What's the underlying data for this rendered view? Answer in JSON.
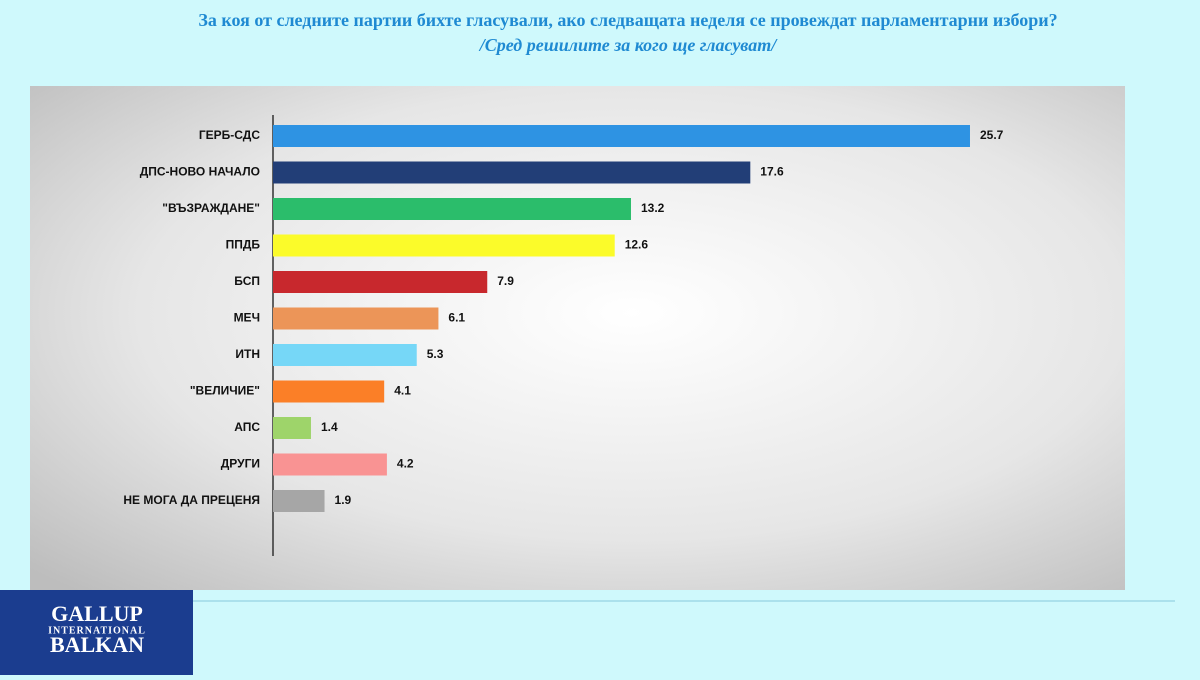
{
  "chart_data": {
    "type": "barh",
    "title": "За коя от следните партии бихте  гласували,  ако следващата неделя се провеждат парламентарни избори?",
    "subtitle": "/Сред решилите за кого ще гласуват/",
    "categories": [
      "ГЕРБ-СДС",
      "ДПС-НОВО НАЧАЛО",
      "\"ВЪЗРАЖДАНЕ\"",
      "ППДБ",
      "БСП",
      "МЕЧ",
      "ИТН",
      "\"ВЕЛИЧИЕ\"",
      "АПС",
      "ДРУГИ",
      "НЕ МОГА ДА ПРЕЦЕНЯ"
    ],
    "values": [
      25.7,
      17.6,
      13.2,
      12.6,
      7.9,
      6.1,
      5.3,
      4.1,
      1.4,
      4.2,
      1.9
    ],
    "colors": [
      "#2e93e3",
      "#223e77",
      "#2bbd6b",
      "#fbfb2a",
      "#c8282d",
      "#ec9558",
      "#76d7f7",
      "#fb7f27",
      "#9ed46a",
      "#f99393",
      "#a6a6a6"
    ]
  },
  "logo": {
    "line1": "GALLUP",
    "line2": "INTERNATIONAL",
    "line3": "BALKAN"
  }
}
